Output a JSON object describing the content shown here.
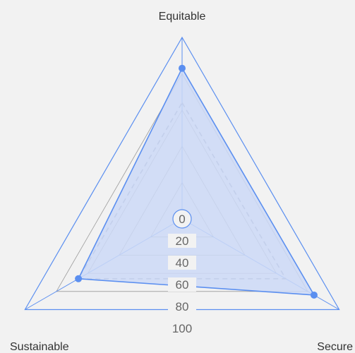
{
  "chart_data": {
    "type": "radar",
    "axes": [
      "Equitable",
      "Secure",
      "Sustainable"
    ],
    "rlim": [
      0,
      100
    ],
    "ticks": [
      "0",
      "20",
      "40",
      "60",
      "80",
      "100"
    ],
    "series": [
      {
        "values": [
          83,
          84,
          66
        ],
        "style": "solid",
        "markers": true
      },
      {
        "values": [
          64,
          66,
          66
        ],
        "style": "dashed",
        "markers": false
      }
    ],
    "colors": {
      "accent": "#5b8ff0",
      "fill": "#cdd9f7",
      "grid": "#999999",
      "dash": "#8a93a8",
      "background": "#f2f2f2"
    }
  }
}
